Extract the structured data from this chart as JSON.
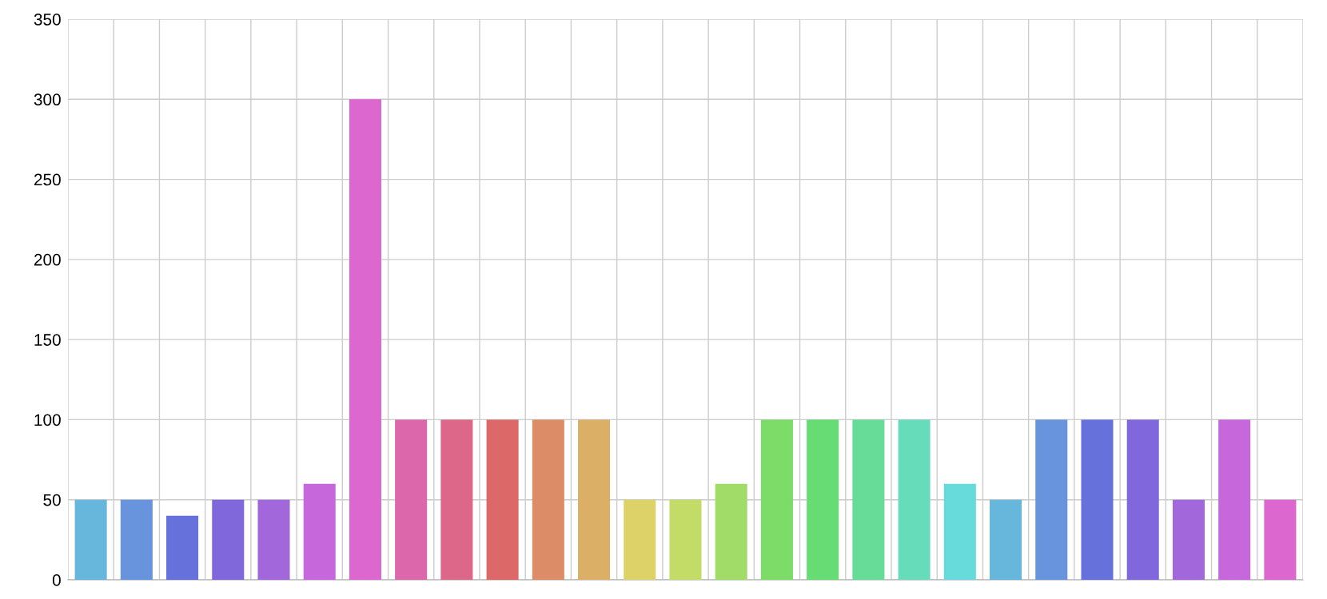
{
  "chart_data": {
    "type": "bar",
    "categories": [
      null,
      null,
      null,
      null,
      null,
      null,
      null,
      null,
      null,
      null,
      null,
      null,
      null,
      null,
      null,
      null,
      null,
      null,
      null,
      null,
      null,
      null,
      null,
      null,
      null,
      null,
      null
    ],
    "values": [
      50,
      50,
      40,
      50,
      50,
      60,
      300,
      100,
      100,
      100,
      100,
      100,
      50,
      50,
      60,
      100,
      100,
      100,
      100,
      60,
      50,
      100,
      100,
      100,
      50,
      100,
      50
    ],
    "colors": [
      "#67b7dc",
      "#6794dc",
      "#6771dc",
      "#8067dc",
      "#a367dc",
      "#c767dc",
      "#dc67ce",
      "#dc67ab",
      "#dc6788",
      "#dc6967",
      "#dc8c67",
      "#dcaf67",
      "#dcd267",
      "#c3dc67",
      "#a0dc67",
      "#7ddc67",
      "#67dc75",
      "#67dc98",
      "#67dcbb",
      "#67dadc",
      "#67b7dc",
      "#6794dc",
      "#6771dc",
      "#8067dc",
      "#a367dc",
      "#c767dc",
      "#dc67ce"
    ],
    "ylim": [
      0,
      350
    ],
    "yticks": [
      0,
      50,
      100,
      150,
      200,
      250,
      300,
      350
    ],
    "grid": true
  }
}
